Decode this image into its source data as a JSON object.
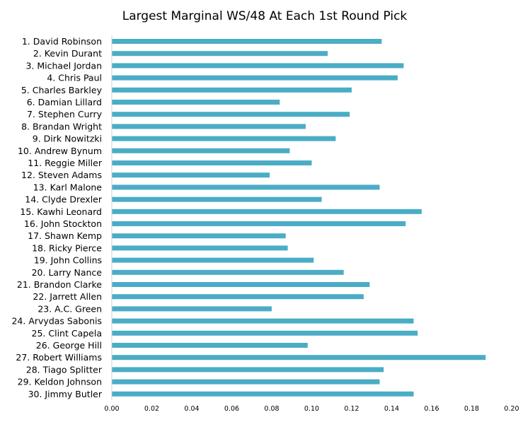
{
  "chart_data": {
    "type": "bar",
    "orientation": "horizontal",
    "title": "Largest Marginal WS/48 At Each 1st Round Pick",
    "xlabel": "",
    "ylabel": "",
    "xlim": [
      0,
      0.2
    ],
    "x_ticks": [
      "0.00",
      "0.02",
      "0.04",
      "0.06",
      "0.08",
      "0.10",
      "0.12",
      "0.14",
      "0.16",
      "0.18",
      "0.20"
    ],
    "grid": false,
    "legend": "none",
    "bar_color": "#4BACC6",
    "categories": [
      "1. David Robinson",
      "2. Kevin Durant",
      "3. Michael Jordan",
      "4. Chris Paul",
      "5. Charles Barkley",
      "6. Damian Lillard",
      "7. Stephen Curry",
      "8. Brandan Wright",
      "9. Dirk Nowitzki",
      "10. Andrew Bynum",
      "11. Reggie Miller",
      "12. Steven Adams",
      "13. Karl Malone",
      "14. Clyde Drexler",
      "15. Kawhi Leonard",
      "16. John Stockton",
      "17. Shawn Kemp",
      "18. Ricky Pierce",
      "19. John Collins",
      "20. Larry Nance",
      "21. Brandon Clarke",
      "22. Jarrett Allen",
      "23. A.C. Green",
      "24. Arvydas Sabonis",
      "25. Clint Capela",
      "26. George Hill",
      "27. Robert Williams",
      "28. Tiago Splitter",
      "29. Keldon Johnson",
      "30. Jimmy Butler"
    ],
    "values": [
      0.135,
      0.108,
      0.146,
      0.143,
      0.12,
      0.084,
      0.119,
      0.097,
      0.112,
      0.089,
      0.1,
      0.079,
      0.134,
      0.105,
      0.155,
      0.147,
      0.087,
      0.088,
      0.101,
      0.116,
      0.129,
      0.126,
      0.08,
      0.151,
      0.153,
      0.098,
      0.187,
      0.136,
      0.134,
      0.151
    ]
  }
}
